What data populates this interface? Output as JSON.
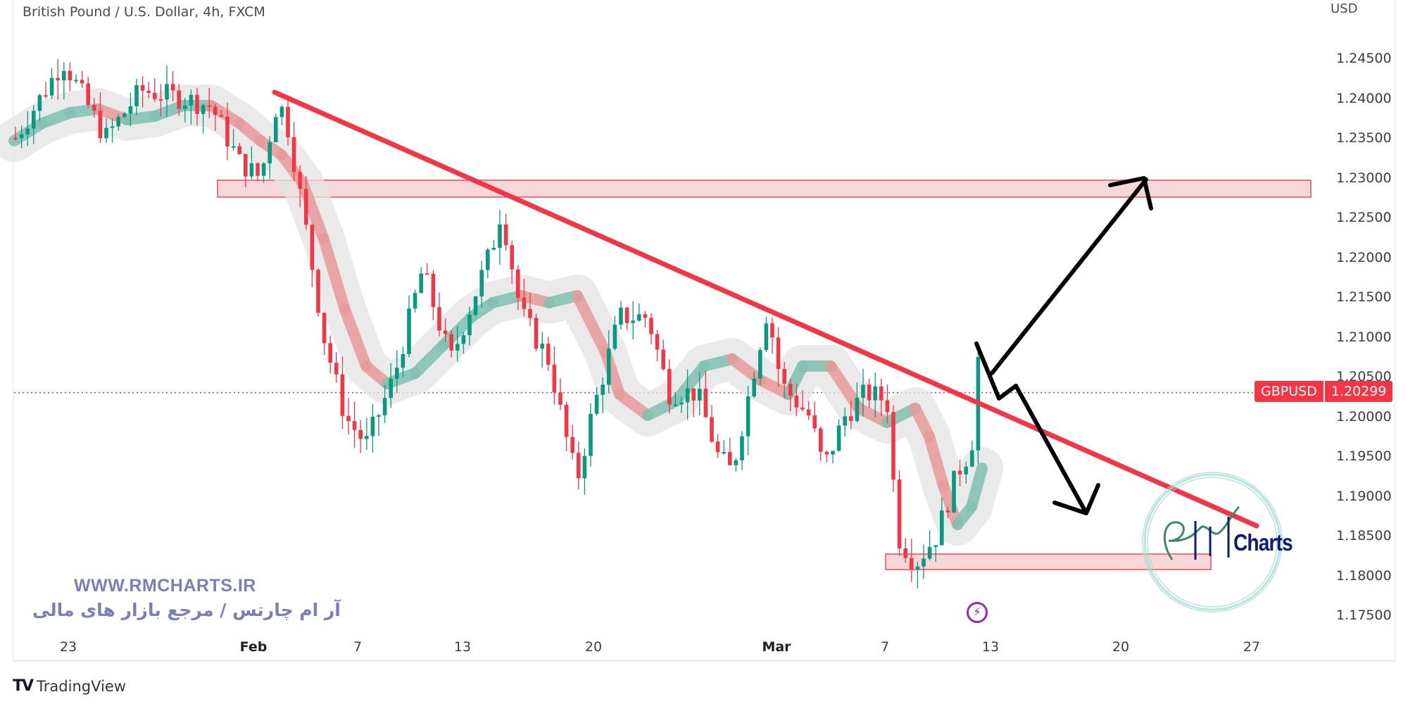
{
  "header": {
    "title": "British Pound / U.S. Dollar, 4h, FXCM",
    "currency": "USD"
  },
  "price_tag": {
    "symbol": "GBPUSD",
    "value": "1.20299",
    "color": "#f23645"
  },
  "watermark": {
    "url": "WWW.RMCHARTS.IR",
    "tagline": "آر ام چارتس / مرجع بازار های مالی",
    "logo_text": "Charts"
  },
  "footer": {
    "brand": "TradingView",
    "logo_glyph": "TV"
  },
  "event_icon": "lightning-icon",
  "colors": {
    "up_candle": "#089981",
    "down_candle": "#f23645",
    "trendline": "#f23645",
    "zone_fill": "#f8d3d7",
    "zone_border": "#f23645",
    "band_gray": "#e3e3e3",
    "band_green": "#7fc2b2",
    "band_red": "#e79a9a",
    "arrows": "#000000",
    "watermark": "#7b7fb5"
  },
  "chart_data": {
    "type": "candlestick",
    "title": "British Pound / U.S. Dollar, 4h, FXCM",
    "symbol": "GBPUSD",
    "timeframe": "4h",
    "exchange": "FXCM",
    "ylabel": "USD",
    "ylim": [
      1.172,
      1.251
    ],
    "y_ticks": [
      "1.24500",
      "1.24000",
      "1.23500",
      "1.23000",
      "1.22500",
      "1.22000",
      "1.21500",
      "1.21000",
      "1.20500",
      "1.20000",
      "1.19500",
      "1.19000",
      "1.18500",
      "1.18000",
      "1.17500"
    ],
    "x_ticks": [
      "23",
      "Feb",
      "7",
      "13",
      "20",
      "Mar",
      "7",
      "13",
      "20",
      "27"
    ],
    "last_price": 1.20299,
    "approx_swing_points": [
      {
        "label": "late Jan high",
        "price": 1.2447
      },
      {
        "label": "Feb 1 high",
        "price": 1.24
      },
      {
        "label": "Feb 7 low",
        "price": 1.196
      },
      {
        "label": "Feb 14 high",
        "price": 1.227
      },
      {
        "label": "Feb 17 low",
        "price": 1.1915
      },
      {
        "label": "Feb 28 high",
        "price": 1.2143
      },
      {
        "label": "Mar 3 low",
        "price": 1.1925
      },
      {
        "label": "Mar 8 low",
        "price": 1.1803
      },
      {
        "label": "Mar 13 high",
        "price": 1.2115
      }
    ],
    "annotations": {
      "descending_trendline": {
        "from": {
          "date": "Feb 2",
          "price": 1.2405
        },
        "to": {
          "date": "Mar 27",
          "price": 1.186
        }
      },
      "resistance_zone": {
        "top": 1.2297,
        "bottom": 1.2276,
        "from": "Jan 30",
        "to": "Mar 29"
      },
      "support_zone": {
        "top": 1.1812,
        "bottom": 1.1803,
        "from": "Mar 7",
        "to": "Mar 25"
      },
      "bullish_scenario_arrow": {
        "from_price": 1.201,
        "to_price": 1.23
      },
      "bearish_scenario_arrow": {
        "from_price": 1.2055,
        "to_price": 1.1805
      }
    },
    "legend": [],
    "grid": false
  }
}
